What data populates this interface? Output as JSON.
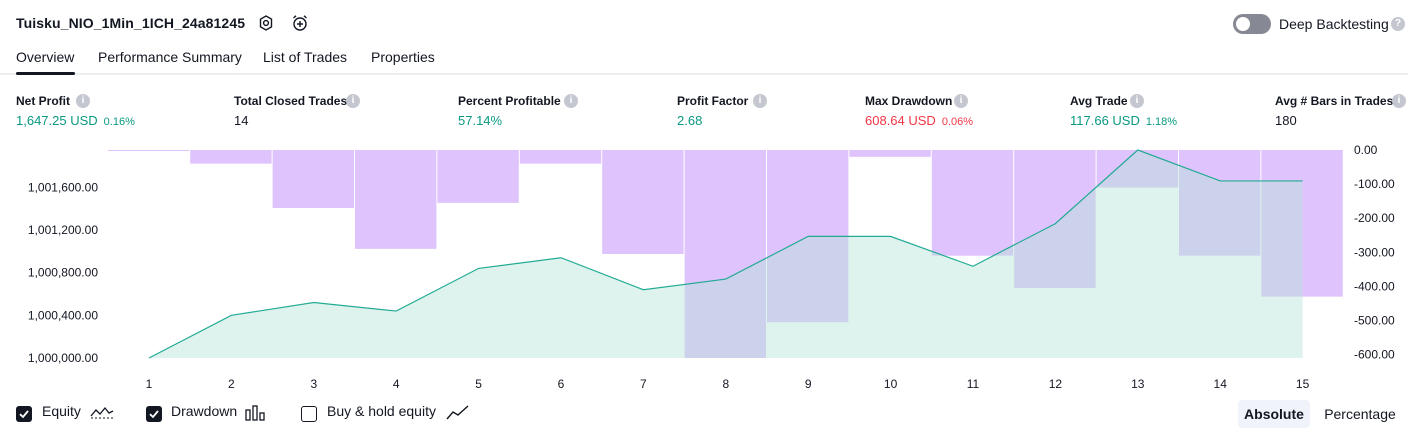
{
  "header": {
    "title": "Tuisku_NIO_1Min_1ICH_24a81245",
    "deep_backtesting_label": "Deep Backtesting",
    "deep_backtesting_enabled": false
  },
  "tabs": [
    {
      "label": "Overview",
      "active": true
    },
    {
      "label": "Performance Summary",
      "active": false
    },
    {
      "label": "List of Trades",
      "active": false
    },
    {
      "label": "Properties",
      "active": false
    }
  ],
  "kpis": [
    {
      "label": "Net Profit",
      "value": "1,647.25 USD",
      "pct": "0.16%",
      "color": "#089981"
    },
    {
      "label": "Total Closed Trades",
      "value": "14",
      "pct": "",
      "color": "#131722"
    },
    {
      "label": "Percent Profitable",
      "value": "57.14%",
      "pct": "",
      "color": "#089981"
    },
    {
      "label": "Profit Factor",
      "value": "2.68",
      "pct": "",
      "color": "#089981"
    },
    {
      "label": "Max Drawdown",
      "value": "608.64 USD",
      "pct": "0.06%",
      "color": "#f23645"
    },
    {
      "label": "Avg Trade",
      "value": "117.66 USD",
      "pct": "1.18%",
      "color": "#089981"
    },
    {
      "label": "Avg # Bars in Trades",
      "value": "180",
      "pct": "",
      "color": "#131722"
    }
  ],
  "chart_data": {
    "type": "area",
    "x": [
      1,
      2,
      3,
      4,
      5,
      6,
      7,
      8,
      9,
      10,
      11,
      12,
      13,
      14,
      15
    ],
    "series": [
      {
        "name": "Equity",
        "axis": "left",
        "values": [
          1000000,
          1000400,
          1000520,
          1000440,
          1000840,
          1000940,
          1000640,
          1000740,
          1001140,
          1001140,
          1000860,
          1001260,
          1001950,
          1001660,
          1001660
        ]
      },
      {
        "name": "Drawdown",
        "axis": "right",
        "values": [
          0,
          -40,
          -170,
          -290,
          -155,
          -40,
          -305,
          -610,
          -505,
          -20,
          -310,
          -405,
          -110,
          -310,
          -430
        ]
      }
    ],
    "left_ticks": [
      "1,001,600.00",
      "1,001,200.00",
      "1,000,800.00",
      "1,000,400.00",
      "1,000,000.00"
    ],
    "left_tick_values": [
      1001600,
      1001200,
      1000800,
      1000400,
      1000000
    ],
    "right_ticks": [
      "0.00",
      "-100.00",
      "-200.00",
      "-300.00",
      "-400.00",
      "-500.00",
      "-600.00"
    ],
    "right_tick_values": [
      0,
      -100,
      -200,
      -300,
      -400,
      -500,
      -600
    ],
    "colors": {
      "equity_line": "#22ab94",
      "equity_fill": "#e6f5f1",
      "drawdown_fill": "#d9b8fb"
    }
  },
  "legend": {
    "equity": {
      "label": "Equity",
      "checked": true
    },
    "drawdown": {
      "label": "Drawdown",
      "checked": true
    },
    "buy_hold": {
      "label": "Buy & hold equity",
      "checked": false
    }
  },
  "toggle_buttons": {
    "absolute": "Absolute",
    "percentage": "Percentage",
    "selected": "absolute"
  }
}
